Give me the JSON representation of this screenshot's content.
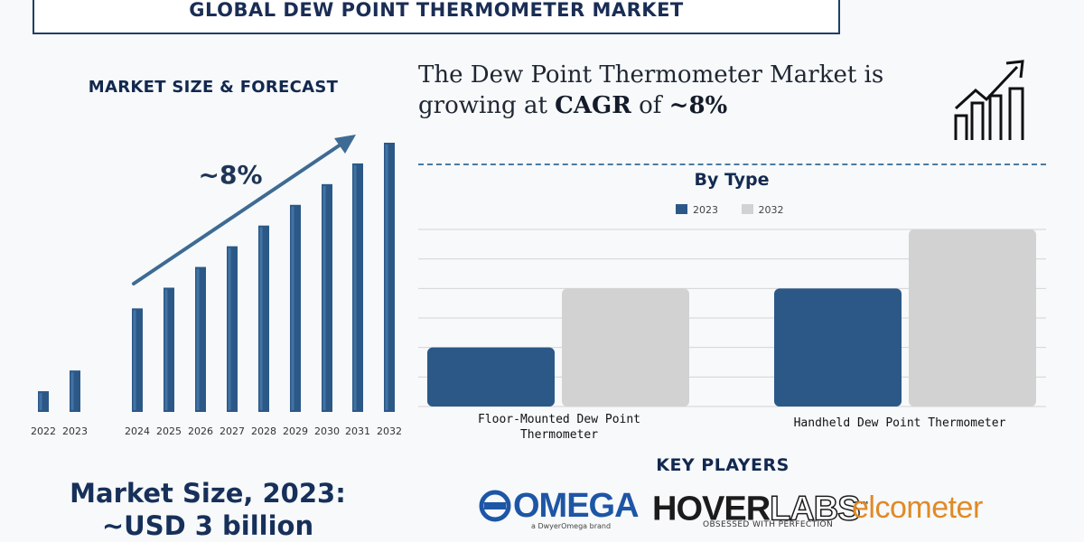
{
  "header": {
    "title": "GLOBAL DEW POINT THERMOMETER MARKET"
  },
  "left_panel": {
    "heading": "MARKET SIZE & FORECAST",
    "cagr_label": "~8%",
    "market_size_line1": "Market Size, 2023:",
    "market_size_line2": "~USD 3 billion"
  },
  "headline": {
    "prefix": "The Dew Point Thermometer Market is growing at ",
    "emphasis1": "CAGR",
    "middle": " of ",
    "emphasis2": "~8%"
  },
  "icons": {
    "growth": "growth-chart-icon"
  },
  "colors": {
    "bar_dark": "#2b5887",
    "bar_light": "#d2d2d2",
    "navy": "#1a2d55",
    "accent_orange": "#e08a26",
    "omega_blue": "#1e56a6"
  },
  "chart_data": [
    {
      "type": "bar",
      "title": "MARKET SIZE & FORECAST",
      "categories": [
        "2022",
        "2023",
        "2024",
        "2025",
        "2026",
        "2027",
        "2028",
        "2029",
        "2030",
        "2031",
        "2032"
      ],
      "values": [
        1,
        2,
        5,
        6,
        7,
        8,
        9,
        10,
        11,
        12,
        13
      ],
      "xlabel": "",
      "ylabel": "",
      "ylim": [
        0,
        13
      ],
      "annotation": "~8%",
      "grid": false
    },
    {
      "type": "bar",
      "title": "By Type",
      "categories": [
        "Floor-Mounted Dew Point Thermometer",
        "Handheld Dew Point Thermometer"
      ],
      "series": [
        {
          "name": "2023",
          "values": [
            2,
            4
          ]
        },
        {
          "name": "2032",
          "values": [
            4,
            6
          ]
        }
      ],
      "ylim": [
        0,
        6
      ],
      "legend": "top-center",
      "grid": true
    }
  ],
  "key_players": {
    "heading": "KEY PLAYERS",
    "omega": {
      "name": "OMEGA",
      "tagline": "a DwyerOmega brand"
    },
    "hoverlabs": {
      "name_solid": "HOVER",
      "name_outline": "LABS",
      "tm": "™",
      "tagline": "OBSESSED WITH PERFECTION"
    },
    "elcometer": {
      "name": "elcometer"
    }
  }
}
